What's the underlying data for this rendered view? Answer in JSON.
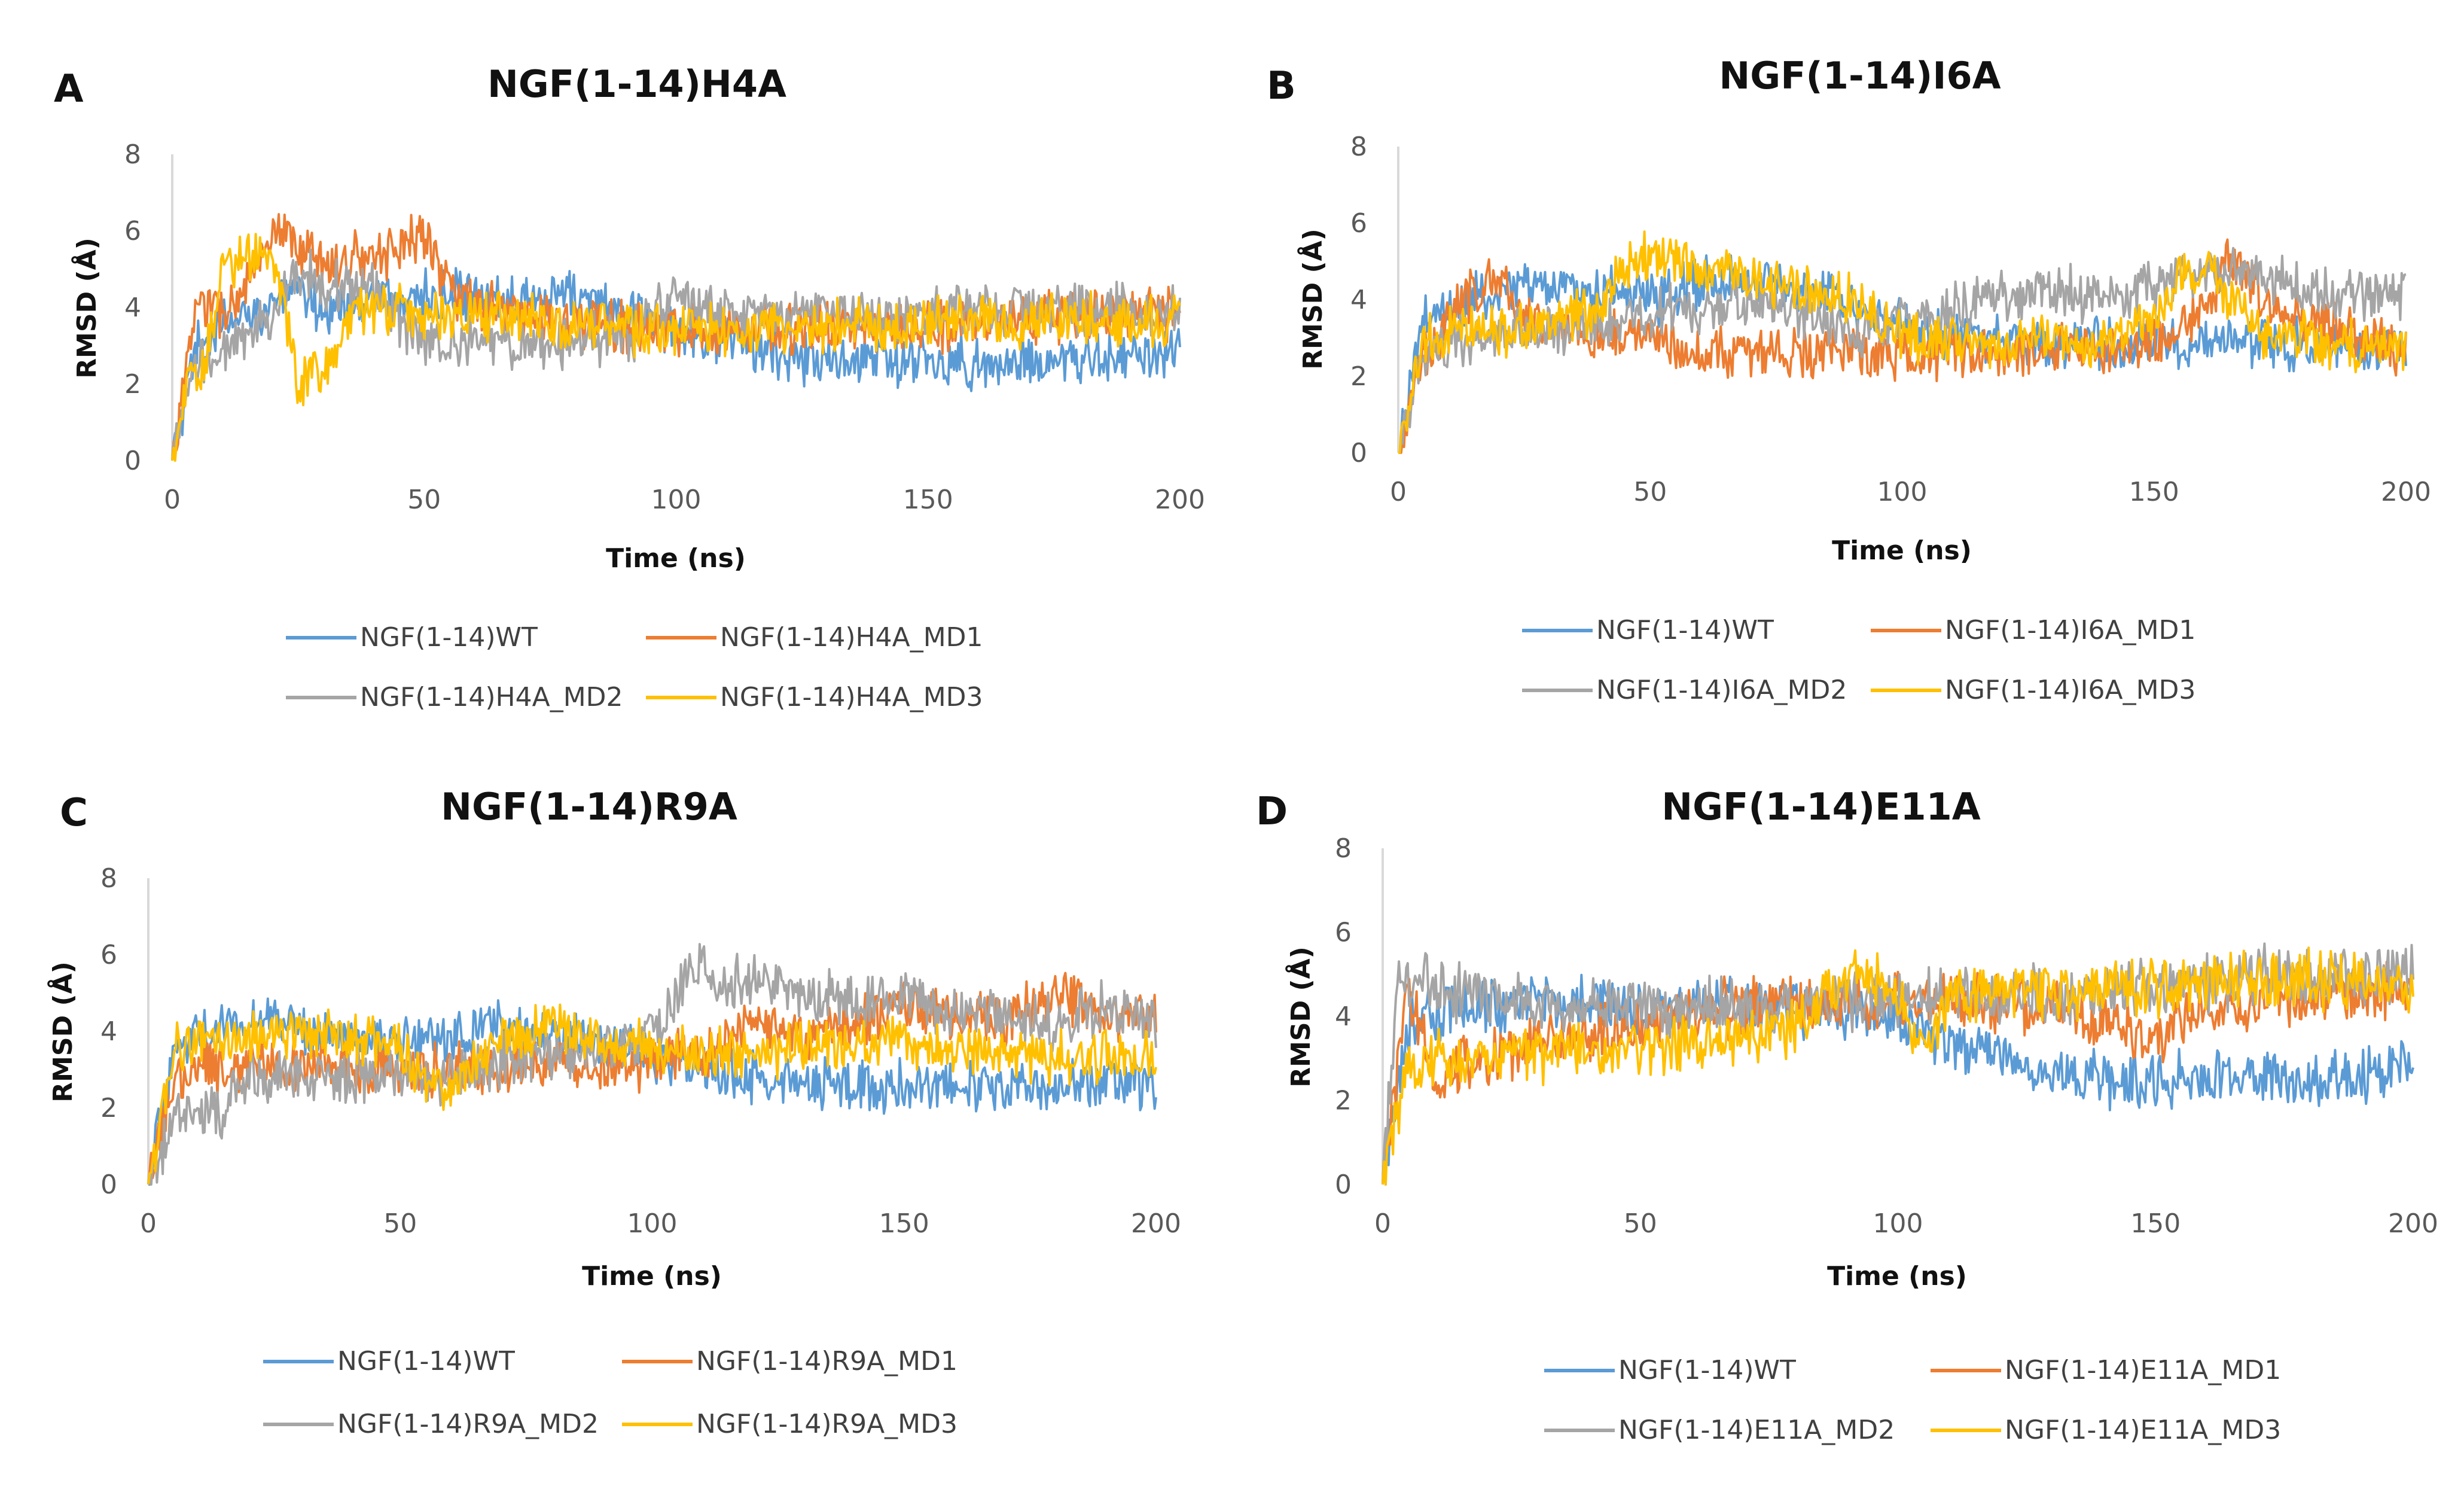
{
  "chart_data": [
    {
      "panel": "A",
      "type": "line",
      "title": "NGF(1-14)H4A",
      "xlabel": "Time (ns)",
      "ylabel": "RMSD (Å)",
      "xlim": [
        0,
        200
      ],
      "ylim": [
        0,
        8
      ],
      "x_ticks": [
        "0",
        "50",
        "100",
        "150",
        "200"
      ],
      "y_ticks": [
        "0",
        "2",
        "4",
        "6",
        "8"
      ],
      "legend_position": "bottom",
      "series": [
        {
          "name": "NGF(1-14)WT",
          "color": "#5b9bd5",
          "x": [
            0,
            5,
            10,
            15,
            20,
            25,
            30,
            40,
            50,
            60,
            70,
            80,
            90,
            100,
            110,
            120,
            130,
            140,
            150,
            160,
            170,
            180,
            190,
            200
          ],
          "values": [
            0,
            3.0,
            3.5,
            3.8,
            4.2,
            4.3,
            4.0,
            4.2,
            4.3,
            4.2,
            4.4,
            4.3,
            3.8,
            3.5,
            3.2,
            2.8,
            2.6,
            2.6,
            2.6,
            2.5,
            2.6,
            2.6,
            2.7,
            2.8
          ]
        },
        {
          "name": "NGF(1-14)H4A_MD1",
          "color": "#ed7d31",
          "x": [
            0,
            5,
            10,
            15,
            20,
            25,
            30,
            40,
            50,
            55,
            60,
            70,
            80,
            90,
            100,
            110,
            120,
            130,
            140,
            150,
            160,
            170,
            180,
            190,
            200
          ],
          "values": [
            0,
            4.2,
            3.8,
            4.6,
            5.8,
            5.6,
            5.2,
            5.3,
            6.0,
            4.5,
            4.0,
            3.8,
            3.6,
            3.5,
            3.5,
            3.4,
            3.5,
            3.4,
            3.5,
            3.5,
            3.6,
            3.7,
            3.8,
            3.9,
            3.8
          ]
        },
        {
          "name": "NGF(1-14)H4A_MD2",
          "color": "#a5a5a5",
          "x": [
            0,
            5,
            10,
            15,
            20,
            25,
            30,
            40,
            50,
            60,
            70,
            80,
            90,
            100,
            110,
            120,
            130,
            140,
            150,
            160,
            170,
            180,
            190,
            200
          ],
          "values": [
            0,
            2.6,
            2.8,
            3.2,
            3.8,
            5.0,
            4.6,
            4.5,
            3.0,
            3.2,
            3.0,
            3.1,
            3.2,
            4.3,
            3.8,
            3.8,
            3.9,
            3.8,
            3.8,
            3.9,
            4.0,
            4.0,
            3.9,
            3.8
          ]
        },
        {
          "name": "NGF(1-14)H4A_MD3",
          "color": "#ffc000",
          "x": [
            0,
            3,
            6,
            10,
            15,
            20,
            25,
            30,
            35,
            40,
            50,
            60,
            70,
            80,
            90,
            100,
            110,
            120,
            130,
            140,
            150,
            160,
            170,
            180,
            190,
            200
          ],
          "values": [
            0,
            2.0,
            2.2,
            5.2,
            5.4,
            5.3,
            2.0,
            2.3,
            3.8,
            3.9,
            3.9,
            3.8,
            3.7,
            3.6,
            3.5,
            3.4,
            3.4,
            3.5,
            3.5,
            3.6,
            3.6,
            3.6,
            3.6,
            3.7,
            3.7,
            3.7
          ]
        }
      ]
    },
    {
      "panel": "B",
      "type": "line",
      "title": "NGF(1-14)I6A",
      "xlabel": "Time (ns)",
      "ylabel": "RMSD (Å)",
      "xlim": [
        0,
        200
      ],
      "ylim": [
        0,
        8
      ],
      "x_ticks": [
        "0",
        "50",
        "100",
        "150",
        "200"
      ],
      "y_ticks": [
        "0",
        "2",
        "4",
        "6",
        "8"
      ],
      "legend_position": "bottom",
      "series": [
        {
          "name": "NGF(1-14)WT",
          "color": "#5b9bd5",
          "x": [
            0,
            5,
            10,
            20,
            30,
            40,
            50,
            60,
            70,
            80,
            90,
            100,
            110,
            120,
            130,
            140,
            150,
            160,
            170,
            180,
            190,
            200
          ],
          "values": [
            0,
            3.5,
            3.8,
            4.3,
            4.4,
            4.2,
            4.0,
            4.5,
            4.6,
            4.3,
            4.0,
            3.3,
            3.0,
            3.0,
            2.9,
            2.9,
            2.9,
            2.9,
            2.9,
            2.8,
            2.8,
            2.7
          ]
        },
        {
          "name": "NGF(1-14)I6A_MD1",
          "color": "#ed7d31",
          "x": [
            0,
            5,
            10,
            15,
            20,
            25,
            30,
            40,
            50,
            60,
            70,
            80,
            90,
            100,
            110,
            120,
            130,
            140,
            150,
            160,
            165,
            170,
            180,
            190,
            200
          ],
          "values": [
            0,
            2.5,
            3.6,
            4.2,
            4.6,
            3.6,
            3.3,
            3.0,
            3.2,
            2.6,
            2.6,
            2.6,
            2.6,
            2.5,
            2.6,
            2.6,
            2.8,
            2.7,
            2.9,
            3.8,
            5.2,
            4.2,
            3.5,
            3.2,
            2.6
          ]
        },
        {
          "name": "NGF(1-14)I6A_MD2",
          "color": "#a5a5a5",
          "x": [
            0,
            5,
            10,
            20,
            30,
            40,
            50,
            60,
            70,
            80,
            90,
            100,
            110,
            120,
            130,
            140,
            150,
            160,
            170,
            180,
            190,
            200
          ],
          "values": [
            0,
            2.6,
            2.8,
            3.0,
            3.2,
            3.4,
            3.6,
            3.8,
            4.0,
            3.7,
            3.2,
            3.5,
            3.7,
            4.2,
            4.3,
            4.0,
            4.4,
            4.7,
            4.6,
            4.3,
            4.2,
            4.2
          ]
        },
        {
          "name": "NGF(1-14)I6A_MD3",
          "color": "#ffc000",
          "x": [
            0,
            5,
            10,
            20,
            30,
            40,
            45,
            50,
            55,
            60,
            70,
            80,
            90,
            100,
            110,
            120,
            130,
            140,
            150,
            155,
            160,
            170,
            180,
            190,
            200
          ],
          "values": [
            0,
            3.0,
            3.1,
            3.2,
            3.3,
            3.8,
            4.8,
            5.2,
            5.0,
            4.8,
            4.5,
            4.3,
            4.0,
            3.0,
            3.0,
            2.9,
            2.9,
            3.0,
            3.4,
            4.6,
            4.8,
            3.2,
            3.0,
            2.8,
            2.8
          ]
        }
      ]
    },
    {
      "panel": "C",
      "type": "line",
      "title": "NGF(1-14)R9A",
      "xlabel": "Time (ns)",
      "ylabel": "RMSD (Å)",
      "xlim": [
        0,
        200
      ],
      "ylim": [
        0,
        8
      ],
      "x_ticks": [
        "0",
        "50",
        "100",
        "150",
        "200"
      ],
      "y_ticks": [
        "0",
        "2",
        "4",
        "6",
        "8"
      ],
      "legend_position": "bottom",
      "series": [
        {
          "name": "NGF(1-14)WT",
          "color": "#5b9bd5",
          "x": [
            0,
            5,
            10,
            20,
            30,
            40,
            50,
            60,
            70,
            80,
            90,
            100,
            110,
            120,
            130,
            140,
            150,
            160,
            170,
            180,
            190,
            200
          ],
          "values": [
            0,
            3.5,
            4.0,
            4.2,
            4.1,
            3.8,
            3.8,
            3.8,
            4.1,
            3.9,
            3.6,
            3.3,
            3.0,
            2.8,
            2.6,
            2.6,
            2.6,
            2.6,
            2.6,
            2.6,
            2.6,
            2.7
          ]
        },
        {
          "name": "NGF(1-14)R9A_MD1",
          "color": "#ed7d31",
          "x": [
            0,
            5,
            10,
            20,
            30,
            40,
            50,
            60,
            70,
            80,
            90,
            100,
            110,
            120,
            130,
            140,
            150,
            160,
            170,
            180,
            190,
            200
          ],
          "values": [
            0,
            2.8,
            3.0,
            3.0,
            3.2,
            3.0,
            3.0,
            3.0,
            3.1,
            3.2,
            3.1,
            3.2,
            3.5,
            4.2,
            3.8,
            4.2,
            4.8,
            4.3,
            4.2,
            5.0,
            4.4,
            4.5
          ]
        },
        {
          "name": "NGF(1-14)R9A_MD2",
          "color": "#a5a5a5",
          "x": [
            0,
            5,
            10,
            15,
            20,
            30,
            40,
            50,
            60,
            70,
            80,
            90,
            100,
            105,
            110,
            115,
            120,
            130,
            140,
            150,
            160,
            170,
            180,
            190,
            200
          ],
          "values": [
            0,
            1.8,
            1.6,
            2.0,
            2.6,
            3.0,
            2.8,
            3.0,
            2.8,
            3.2,
            3.4,
            3.6,
            3.8,
            5.0,
            5.8,
            5.2,
            5.3,
            5.0,
            4.8,
            5.0,
            4.4,
            4.5,
            4.2,
            4.6,
            4.2
          ]
        },
        {
          "name": "NGF(1-14)R9A_MD3",
          "color": "#ffc000",
          "x": [
            0,
            5,
            10,
            20,
            30,
            40,
            50,
            55,
            60,
            70,
            80,
            90,
            100,
            110,
            120,
            130,
            140,
            150,
            160,
            170,
            180,
            190,
            200
          ],
          "values": [
            0,
            3.5,
            3.8,
            3.8,
            3.9,
            3.8,
            3.6,
            2.6,
            2.4,
            3.8,
            4.2,
            3.8,
            3.5,
            3.5,
            3.4,
            3.6,
            3.7,
            3.8,
            3.5,
            3.4,
            3.3,
            3.3,
            3.3
          ]
        }
      ]
    },
    {
      "panel": "D",
      "type": "line",
      "title": "NGF(1-14)E11A",
      "xlabel": "Time (ns)",
      "ylabel": "RMSD (Å)",
      "xlim": [
        0,
        200
      ],
      "ylim": [
        0,
        8
      ],
      "x_ticks": [
        "0",
        "50",
        "100",
        "150",
        "200"
      ],
      "y_ticks": [
        "0",
        "2",
        "4",
        "6",
        "8"
      ],
      "legend_position": "bottom",
      "series": [
        {
          "name": "NGF(1-14)WT",
          "color": "#5b9bd5",
          "x": [
            0,
            5,
            10,
            20,
            30,
            40,
            50,
            60,
            70,
            80,
            90,
            100,
            110,
            120,
            130,
            140,
            150,
            160,
            170,
            180,
            190,
            200
          ],
          "values": [
            0,
            3.8,
            4.1,
            4.2,
            4.3,
            4.3,
            4.2,
            4.3,
            4.3,
            4.2,
            4.2,
            4.0,
            3.5,
            3.0,
            2.6,
            2.5,
            2.5,
            2.5,
            2.6,
            2.5,
            2.6,
            2.7
          ]
        },
        {
          "name": "NGF(1-14)E11A_MD1",
          "color": "#ed7d31",
          "x": [
            0,
            3,
            5,
            10,
            15,
            20,
            30,
            40,
            50,
            60,
            70,
            80,
            90,
            100,
            110,
            120,
            130,
            140,
            145,
            150,
            155,
            160,
            170,
            180,
            190,
            200
          ],
          "values": [
            0,
            3.0,
            4.8,
            2.6,
            2.8,
            3.0,
            3.4,
            3.6,
            3.8,
            4.1,
            4.2,
            4.3,
            4.4,
            4.4,
            4.4,
            4.3,
            4.2,
            4.0,
            3.7,
            3.4,
            4.0,
            4.3,
            4.4,
            4.4,
            4.5,
            4.6
          ]
        },
        {
          "name": "NGF(1-14)E11A_MD2",
          "color": "#a5a5a5",
          "x": [
            0,
            3,
            6,
            10,
            20,
            30,
            40,
            50,
            60,
            70,
            80,
            90,
            100,
            110,
            120,
            130,
            140,
            150,
            160,
            170,
            180,
            190,
            200
          ],
          "values": [
            0,
            4.7,
            4.9,
            4.7,
            4.4,
            4.3,
            4.3,
            4.2,
            4.2,
            4.2,
            4.3,
            4.4,
            4.5,
            4.5,
            4.5,
            4.5,
            4.6,
            4.7,
            4.8,
            5.0,
            4.9,
            4.9,
            5.0
          ]
        },
        {
          "name": "NGF(1-14)E11A_MD3",
          "color": "#ffc000",
          "x": [
            0,
            5,
            10,
            20,
            30,
            40,
            50,
            60,
            70,
            80,
            85,
            90,
            95,
            100,
            105,
            110,
            120,
            130,
            140,
            150,
            160,
            170,
            180,
            190,
            200
          ],
          "values": [
            0,
            3.0,
            3.1,
            3.0,
            3.1,
            3.2,
            3.3,
            3.4,
            3.5,
            3.7,
            4.2,
            5.0,
            4.8,
            4.6,
            3.2,
            4.4,
            4.6,
            4.6,
            4.7,
            4.7,
            4.8,
            4.8,
            4.9,
            4.8,
            4.7
          ]
        }
      ]
    }
  ]
}
